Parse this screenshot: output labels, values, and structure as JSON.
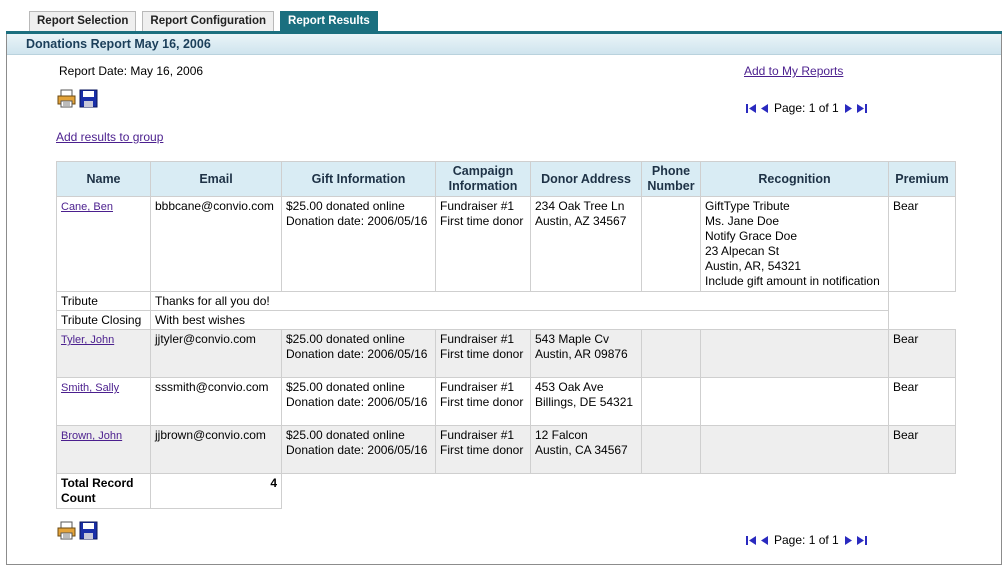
{
  "tabs": [
    {
      "label": "Report Selection",
      "active": false
    },
    {
      "label": "Report Configuration",
      "active": false
    },
    {
      "label": "Report Results",
      "active": true
    }
  ],
  "title": "Donations Report May 16, 2006",
  "report_date": "Report Date: May 16, 2006",
  "add_to_reports": "Add to My Reports",
  "add_results_to_group": "Add results to group",
  "pager": {
    "label": "Page: 1 of 1"
  },
  "icons": {
    "print": "printer-icon",
    "save": "floppy-disk-icon",
    "first": "first-page-icon",
    "prev": "previous-page-icon",
    "next": "next-page-icon",
    "last": "last-page-icon"
  },
  "colors": {
    "accent": "#1b6f7f",
    "header_bg": "#d9ecf4",
    "link": "#4b1f8e",
    "row_shade": "#eeeeee"
  },
  "table": {
    "headers": {
      "name": "Name",
      "email": "Email",
      "gift": "Gift Information",
      "campaign_1": "Campaign",
      "campaign_2": "Information",
      "address": "Donor Address",
      "phone_1": "Phone",
      "phone_2": "Number",
      "recognition": "Recognition",
      "premium": "Premium"
    },
    "rows": [
      {
        "name": "Cane, Ben",
        "email": "bbbcane@convio.com",
        "gift_1": "$25.00 donated online",
        "gift_2": "Donation date: 2006/05/16",
        "campaign_1": "Fundraiser #1",
        "campaign_2": "First time donor",
        "address_1": "234 Oak Tree Ln",
        "address_2": "Austin, AZ 34567",
        "phone": "",
        "recognition": [
          "GiftType  Tribute",
          "Ms. Jane Doe",
          "Notify   Grace Doe",
          "23 Alpecan St",
          "Austin, AR, 54321",
          "Include gift amount in notification"
        ],
        "premium": "Bear"
      },
      {
        "name": "Tyler, John",
        "email": "jjtyler@convio.com",
        "gift_1": "$25.00 donated online",
        "gift_2": "Donation date: 2006/05/16",
        "campaign_1": "Fundraiser #1",
        "campaign_2": "First time donor",
        "address_1": "543 Maple Cv",
        "address_2": "Austin, AR 09876",
        "phone": "",
        "premium": "Bear"
      },
      {
        "name": "Smith, Sally",
        "email": "sssmith@convio.com",
        "gift_1": "$25.00 donated online",
        "gift_2": "Donation date: 2006/05/16",
        "campaign_1": "Fundraiser #1",
        "campaign_2": "First time donor",
        "address_1": "453 Oak Ave",
        "address_2": "Billings, DE 54321",
        "phone": "",
        "premium": "Bear"
      },
      {
        "name": "Brown, John",
        "email": "jjbrown@convio.com",
        "gift_1": "$25.00 donated online",
        "gift_2": "Donation date: 2006/05/16",
        "campaign_1": "Fundraiser #1",
        "campaign_2": "First time donor",
        "address_1": "12 Falcon",
        "address_2": "Austin, CA 34567",
        "phone": "",
        "premium": "Bear"
      }
    ],
    "tribute": {
      "label": "Tribute",
      "value": "Thanks for all you do!"
    },
    "tribute_closing": {
      "label": "Tribute Closing",
      "value": "With best wishes"
    },
    "total": {
      "label_1": "Total Record",
      "label_2": "Count",
      "value": "4"
    }
  }
}
